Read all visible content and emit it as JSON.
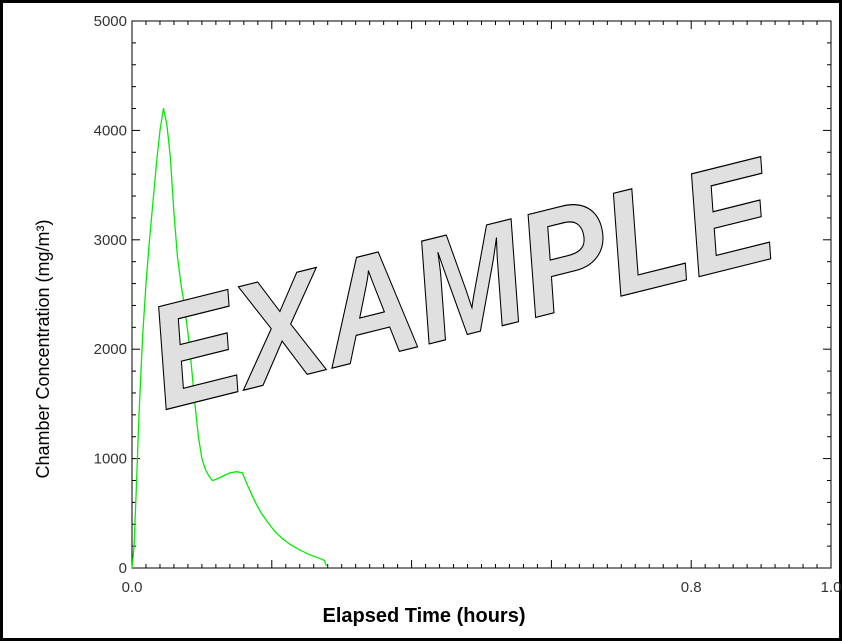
{
  "chart_data": {
    "type": "line",
    "xlabel": "Elapsed Time (hours)",
    "ylabel": "Chamber Concentration (mg/m³)",
    "xlim": [
      0.0,
      1.0
    ],
    "ylim": [
      0,
      5000
    ],
    "x_ticks": [
      "0.0",
      "0.2",
      "0.4",
      "0.6",
      "0.8",
      "1.0"
    ],
    "y_ticks": [
      "0",
      "1000",
      "2000",
      "3000",
      "4000",
      "5000"
    ],
    "grid": false,
    "watermark": "EXAMPLE",
    "series": [
      {
        "color": "#00ee00",
        "points": [
          [
            0.0,
            0
          ],
          [
            0.003,
            200
          ],
          [
            0.006,
            700
          ],
          [
            0.01,
            1400
          ],
          [
            0.015,
            2100
          ],
          [
            0.02,
            2600
          ],
          [
            0.025,
            3000
          ],
          [
            0.03,
            3350
          ],
          [
            0.035,
            3700
          ],
          [
            0.04,
            4000
          ],
          [
            0.045,
            4200
          ],
          [
            0.05,
            4050
          ],
          [
            0.055,
            3750
          ],
          [
            0.06,
            3250
          ],
          [
            0.065,
            2850
          ],
          [
            0.07,
            2600
          ],
          [
            0.075,
            2400
          ],
          [
            0.08,
            2150
          ],
          [
            0.085,
            1850
          ],
          [
            0.09,
            1500
          ],
          [
            0.095,
            1200
          ],
          [
            0.1,
            1000
          ],
          [
            0.105,
            900
          ],
          [
            0.11,
            840
          ],
          [
            0.115,
            800
          ],
          [
            0.12,
            810
          ],
          [
            0.13,
            840
          ],
          [
            0.14,
            870
          ],
          [
            0.15,
            880
          ],
          [
            0.158,
            870
          ],
          [
            0.165,
            760
          ],
          [
            0.175,
            620
          ],
          [
            0.185,
            500
          ],
          [
            0.195,
            410
          ],
          [
            0.205,
            330
          ],
          [
            0.215,
            270
          ],
          [
            0.225,
            220
          ],
          [
            0.24,
            165
          ],
          [
            0.255,
            120
          ],
          [
            0.268,
            90
          ],
          [
            0.275,
            70
          ],
          [
            0.278,
            20
          ]
        ]
      }
    ]
  }
}
